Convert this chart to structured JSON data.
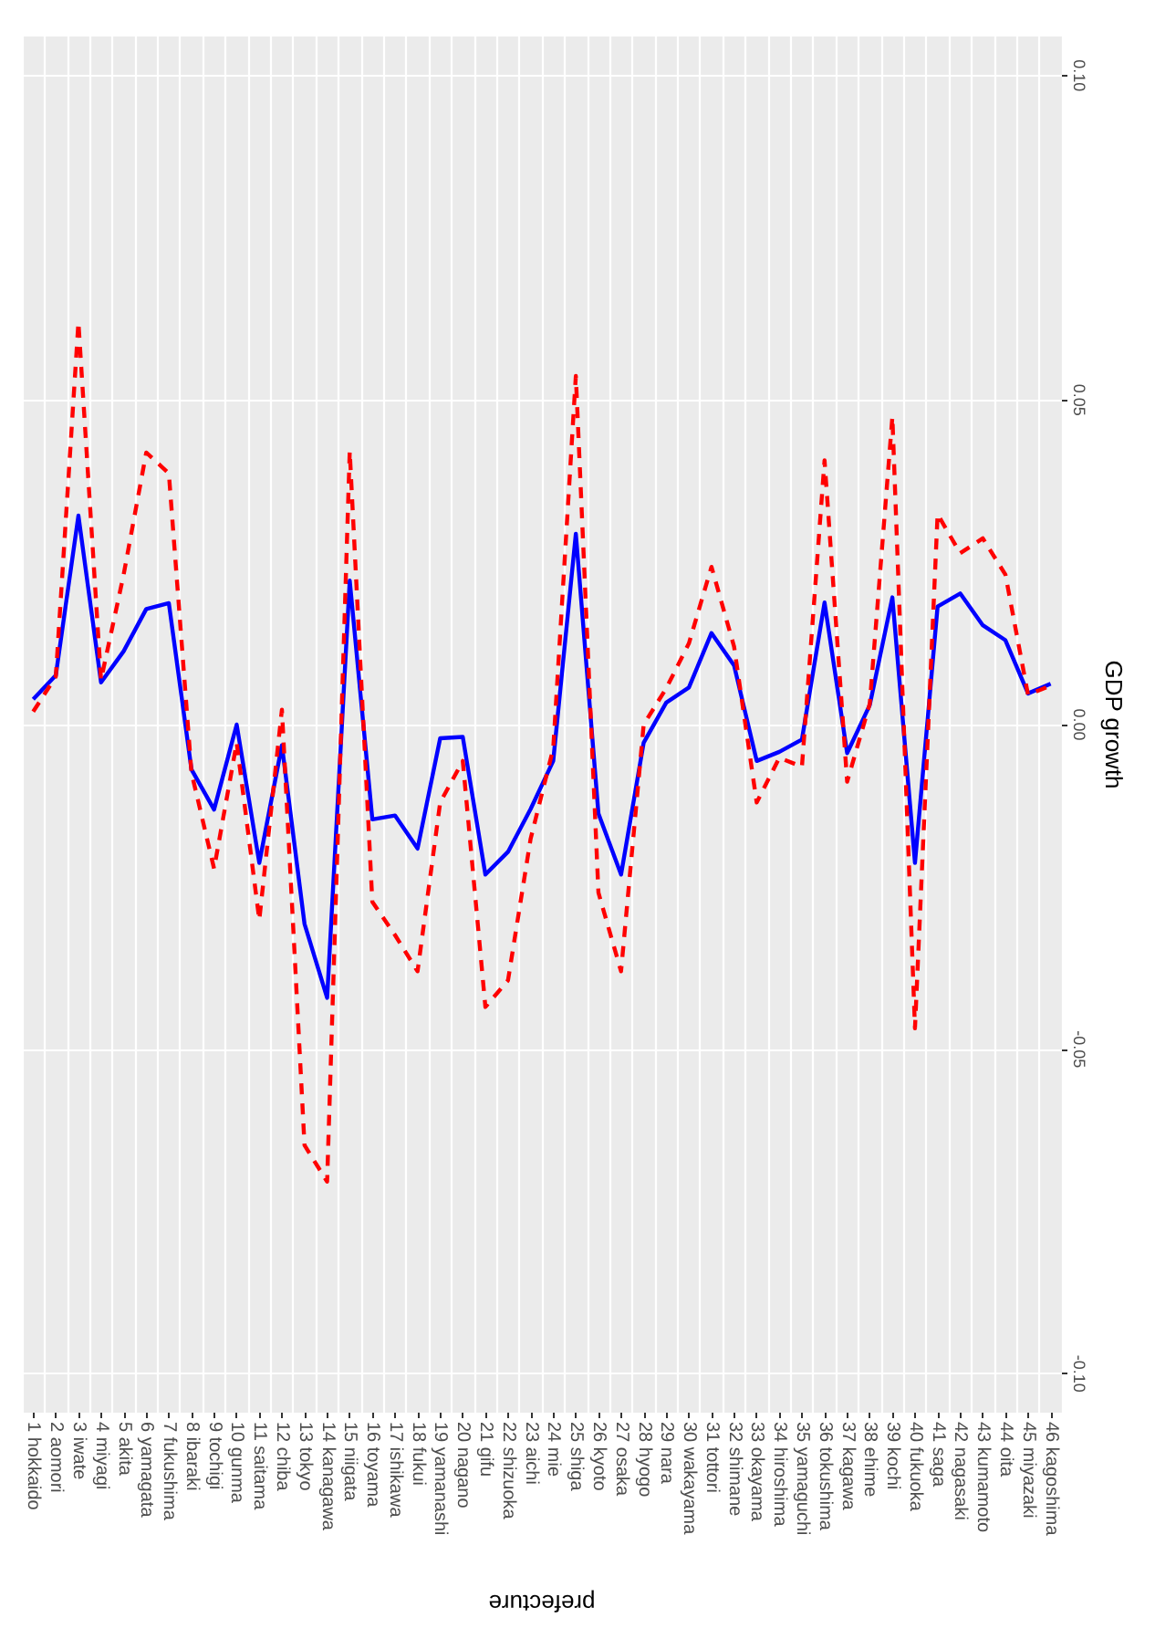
{
  "chart_data": {
    "type": "line",
    "xlabel": "prefecture",
    "ylabel": "GDP growth",
    "categories": [
      "1 hokkaido",
      "2 aomori",
      "3 iwate",
      "4 miyagi",
      "5 akita",
      "6 yamagata",
      "7 fukushima",
      "8 ibaraki",
      "9 tochigi",
      "10 gunma",
      "11 saitama",
      "12 chiba",
      "13 tokyo",
      "14 kanagawa",
      "15 niigata",
      "16 toyama",
      "17 ishikawa",
      "18 fukui",
      "19 yamanashi",
      "20 nagano",
      "21 gifu",
      "22 shizuoka",
      "23 aichi",
      "24 mie",
      "25 shiga",
      "26 kyoto",
      "27 osaka",
      "28 hyogo",
      "29 nara",
      "30 wakayama",
      "31 tottori",
      "32 shimane",
      "33 okayama",
      "34 hiroshima",
      "35 yamaguchi",
      "36 tokushima",
      "37 kagawa",
      "38 ehime",
      "39 kochi",
      "40 fukuoka",
      "41 saga",
      "42 nagasaki",
      "43 kumamoto",
      "44 oita",
      "45 miyazaki",
      "46 kagoshima"
    ],
    "series": [
      {
        "color": "#0000ff",
        "line_style": "solid",
        "values": [
          0.0039,
          0.0076,
          0.0322,
          0.0065,
          0.0113,
          0.0178,
          0.0187,
          -0.0069,
          -0.0131,
          0.0,
          -0.0213,
          -0.0032,
          -0.0307,
          -0.0421,
          0.0222,
          -0.0146,
          -0.014,
          -0.0191,
          -0.0021,
          -0.0019,
          -0.0231,
          -0.0196,
          -0.013,
          -0.0056,
          0.0294,
          -0.0137,
          -0.0231,
          -0.0028,
          0.0034,
          0.0057,
          0.0141,
          0.0091,
          -0.0056,
          -0.0042,
          -0.0023,
          0.0188,
          -0.0044,
          0.003,
          0.0196,
          -0.0213,
          0.0182,
          0.0202,
          0.0153,
          0.013,
          0.0048,
          0.0063
        ]
      },
      {
        "color": "#ff0000",
        "line_style": "dashed",
        "values": [
          0.002,
          0.0074,
          0.062,
          0.0069,
          0.0231,
          0.0419,
          0.0387,
          -0.0074,
          -0.0222,
          -0.0028,
          -0.0301,
          0.0023,
          -0.0648,
          -0.0704,
          0.0421,
          -0.0273,
          -0.0324,
          -0.038,
          -0.012,
          -0.0056,
          -0.0435,
          -0.0394,
          -0.0176,
          -0.0037,
          0.0537,
          -0.0259,
          -0.038,
          0.0,
          0.0056,
          0.0125,
          0.0243,
          0.012,
          -0.012,
          -0.0051,
          -0.0065,
          0.0407,
          -0.0088,
          0.0032,
          0.0474,
          -0.0468,
          0.0324,
          0.0264,
          0.0287,
          0.0231,
          0.0046,
          0.006
        ]
      }
    ],
    "ylim": [
      -0.106,
      0.106
    ],
    "yticks": [
      {
        "value": -0.1,
        "label": "-0.10"
      },
      {
        "value": -0.05,
        "label": "-0.05"
      },
      {
        "value": 0,
        "label": "0.00"
      },
      {
        "value": 0.05,
        "label": "0.05"
      },
      {
        "value": 0.1,
        "label": "0.10"
      }
    ],
    "grid": true,
    "marker": "none"
  }
}
